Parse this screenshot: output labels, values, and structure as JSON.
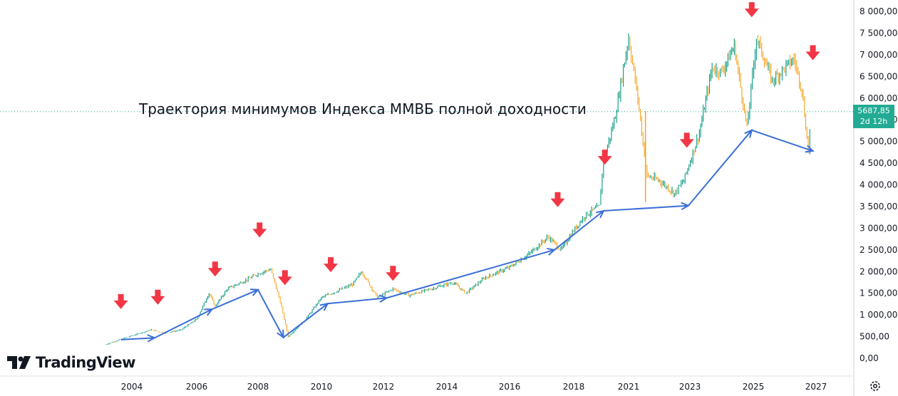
{
  "chart_data": {
    "type": "candlestick",
    "annotation": "Траектория минимумов Индекса ММВБ полной доходности",
    "x_ticks": [
      "2004",
      "2006",
      "2008",
      "2010",
      "2012",
      "2014",
      "2016",
      "2018",
      "2021",
      "2023",
      "2025",
      "2027"
    ],
    "y_ticks": [
      "0,00",
      "500,00",
      "1 000,00",
      "1 500,00",
      "2 000,00",
      "2 500,00",
      "3 000,00",
      "3 500,00",
      "4 000,00",
      "4 500,00",
      "5 000,00",
      "5 500,00",
      "6 000,00",
      "6 500,00",
      "7 000,00",
      "7 500,00",
      "8 000,00"
    ],
    "ylim": [
      0,
      8000
    ],
    "last_price": "5687,85",
    "countdown": "2d 12h",
    "price_line": 5687.85,
    "price_series": [
      {
        "x": "2003.4",
        "y": 320
      },
      {
        "x": "2004.0",
        "y": 520
      },
      {
        "x": "2004.6",
        "y": 660
      },
      {
        "x": "2005.0",
        "y": 580
      },
      {
        "x": "2005.5",
        "y": 650
      },
      {
        "x": "2006.0",
        "y": 900
      },
      {
        "x": "2006.4",
        "y": 1500
      },
      {
        "x": "2006.6",
        "y": 1200
      },
      {
        "x": "2007.0",
        "y": 1600
      },
      {
        "x": "2007.6",
        "y": 1800
      },
      {
        "x": "2008.0",
        "y": 1950
      },
      {
        "x": "2008.4",
        "y": 2050
      },
      {
        "x": "2008.7",
        "y": 1300
      },
      {
        "x": "2008.95",
        "y": 500
      },
      {
        "x": "2009.5",
        "y": 900
      },
      {
        "x": "2010.0",
        "y": 1400
      },
      {
        "x": "2010.5",
        "y": 1550
      },
      {
        "x": "2011.0",
        "y": 1700
      },
      {
        "x": "2011.3",
        "y": 2000
      },
      {
        "x": "2011.8",
        "y": 1400
      },
      {
        "x": "2012.3",
        "y": 1600
      },
      {
        "x": "2012.8",
        "y": 1450
      },
      {
        "x": "2013.5",
        "y": 1600
      },
      {
        "x": "2014.2",
        "y": 1750
      },
      {
        "x": "2014.6",
        "y": 1500
      },
      {
        "x": "2015.2",
        "y": 1850
      },
      {
        "x": "2016.0",
        "y": 2100
      },
      {
        "x": "2016.6",
        "y": 2400
      },
      {
        "x": "2017.2",
        "y": 2800
      },
      {
        "x": "2017.6",
        "y": 2500
      },
      {
        "x": "2018.0",
        "y": 2950
      },
      {
        "x": "2018.4",
        "y": 3300
      },
      {
        "x": "2018.9",
        "y": 3500
      },
      {
        "x": "2019.1",
        "y": 4600
      },
      {
        "x": "2019.5",
        "y": 5000
      },
      {
        "x": "2020.0",
        "y": 5600
      },
      {
        "x": "2020.5",
        "y": 6500
      },
      {
        "x": "2021.0",
        "y": 7400
      },
      {
        "x": "2021.3",
        "y": 6000
      },
      {
        "x": "2021.6",
        "y": 4200
      },
      {
        "x": "2022.0",
        "y": 4100
      },
      {
        "x": "2022.5",
        "y": 3800
      },
      {
        "x": "2022.8",
        "y": 4100
      },
      {
        "x": "2023.3",
        "y": 5200
      },
      {
        "x": "2023.7",
        "y": 6700
      },
      {
        "x": "2024.0",
        "y": 6600
      },
      {
        "x": "2024.4",
        "y": 7200
      },
      {
        "x": "2024.8",
        "y": 5300
      },
      {
        "x": "2025.1",
        "y": 7400
      },
      {
        "x": "2025.6",
        "y": 6400
      },
      {
        "x": "2026.0",
        "y": 6700
      },
      {
        "x": "2026.3",
        "y": 6900
      },
      {
        "x": "2026.55",
        "y": 6200
      },
      {
        "x": "2026.75",
        "y": 4800
      },
      {
        "x": "2026.85",
        "y": 5690
      }
    ],
    "trajectory": {
      "color": "#3a6fd8",
      "points": [
        {
          "x": "2003.75",
          "y": 430
        },
        {
          "x": "2004.7",
          "y": 470
        },
        {
          "x": "2006.5",
          "y": 1130
        },
        {
          "x": "2008.0",
          "y": 1580
        },
        {
          "x": "2008.8",
          "y": 480
        },
        {
          "x": "2010.2",
          "y": 1260
        },
        {
          "x": "2012.1",
          "y": 1390
        },
        {
          "x": "2017.4",
          "y": 2500
        },
        {
          "x": "2019.1",
          "y": 3400
        },
        {
          "x": "2022.95",
          "y": 3520
        },
        {
          "x": "2024.95",
          "y": 5260
        },
        {
          "x": "2026.9",
          "y": 4780
        }
      ]
    },
    "markers": {
      "color": "#f23645",
      "symbol": "down-arrow",
      "points": [
        {
          "x": "2003.75",
          "y": 1300
        },
        {
          "x": "2004.8",
          "y": 1400
        },
        {
          "x": "2006.6",
          "y": 2050
        },
        {
          "x": "2008.05",
          "y": 2950
        },
        {
          "x": "2008.85",
          "y": 1850
        },
        {
          "x": "2010.3",
          "y": 2150
        },
        {
          "x": "2012.3",
          "y": 1950
        },
        {
          "x": "2017.5",
          "y": 3650
        },
        {
          "x": "2019.2",
          "y": 4630
        },
        {
          "x": "2022.9",
          "y": 5020
        },
        {
          "x": "2024.95",
          "y": 8030
        },
        {
          "x": "2026.9",
          "y": 7040
        }
      ]
    },
    "brand": "TradingView",
    "colors": {
      "up": "#089981",
      "down": "#f7a21b",
      "price_line": "#22ab94",
      "trajectory": "#3a6fd8",
      "arrows": "#f23645"
    }
  }
}
